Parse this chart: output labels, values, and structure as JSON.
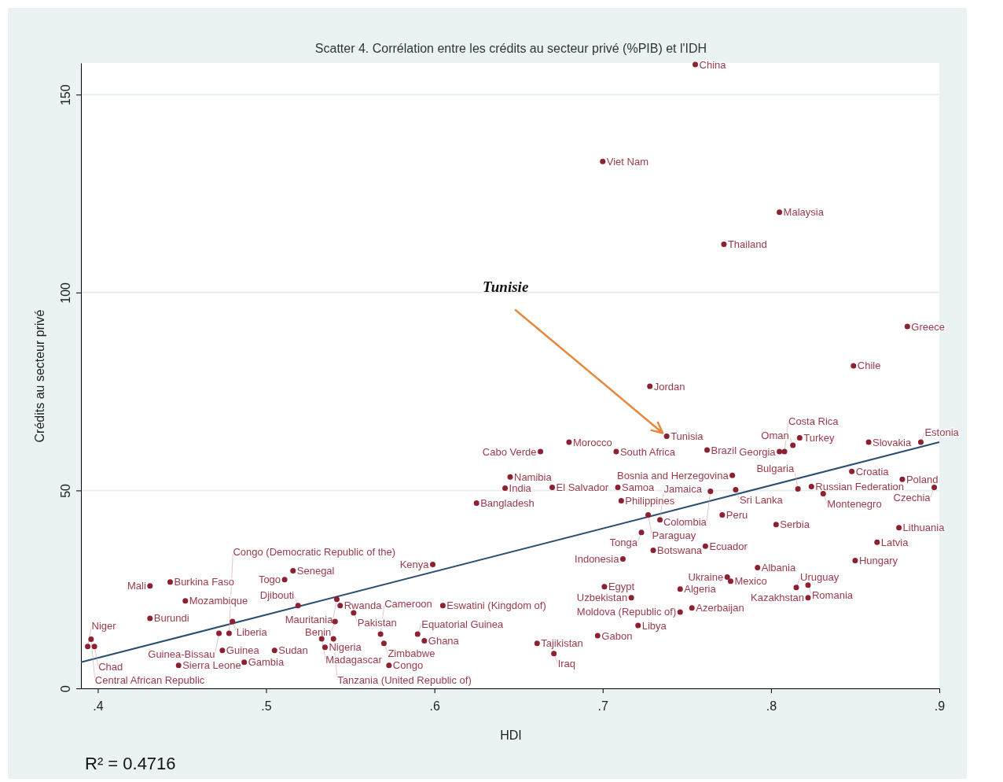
{
  "chart_data": {
    "type": "scatter",
    "title": "Scatter 4. Corrélation entre les crédits au secteur privé (%PIB) et l'IDH",
    "xlabel": "HDI",
    "ylabel": "Crédits au secteur privé",
    "xlim": [
      0.39,
      0.9
    ],
    "xticks": [
      {
        "value": 0.4,
        "label": ".4"
      },
      {
        "value": 0.5,
        "label": ".5"
      },
      {
        "value": 0.6,
        "label": ".6"
      },
      {
        "value": 0.7,
        "label": ".7"
      },
      {
        "value": 0.8,
        "label": ".8"
      },
      {
        "value": 0.9,
        "label": ".9"
      }
    ],
    "ylim": [
      0,
      158
    ],
    "yticks": [
      0,
      50,
      100,
      150
    ],
    "grid": "y",
    "series": [
      {
        "marker": "circle",
        "color": "#8b2131",
        "x": [
          0.755,
          0.7,
          0.805,
          0.772,
          0.881,
          0.849,
          0.728,
          0.738,
          0.68,
          0.663,
          0.708,
          0.762,
          0.817,
          0.813,
          0.805,
          0.808,
          0.858,
          0.889,
          0.645,
          0.642,
          0.67,
          0.709,
          0.711,
          0.625,
          0.777,
          0.764,
          0.779,
          0.816,
          0.824,
          0.831,
          0.848,
          0.878,
          0.897,
          0.727,
          0.771,
          0.734,
          0.803,
          0.723,
          0.73,
          0.761,
          0.712,
          0.876,
          0.863,
          0.85,
          0.792,
          0.774,
          0.776,
          0.701,
          0.746,
          0.717,
          0.815,
          0.822,
          0.822,
          0.753,
          0.746,
          0.721,
          0.697,
          0.661,
          0.671,
          0.605,
          0.599,
          0.573,
          0.516,
          0.511,
          0.443,
          0.431,
          0.452,
          0.431,
          0.519,
          0.542,
          0.544,
          0.552,
          0.541,
          0.48,
          0.472,
          0.478,
          0.396,
          0.394,
          0.398,
          0.474,
          0.505,
          0.487,
          0.448,
          0.535,
          0.57,
          0.594,
          0.59,
          0.568,
          0.54,
          0.533
        ],
        "values": [
          157.6,
          133.1,
          120.3,
          112.2,
          91.4,
          81.5,
          76.3,
          63.7,
          62.2,
          59.8,
          59.8,
          60.2,
          63.3,
          61.4,
          59.8,
          59.8,
          62.2,
          62.2,
          53.4,
          50.6,
          50.8,
          50.8,
          47.4,
          46.8,
          53.8,
          49.8,
          50.2,
          50.4,
          51.0,
          49.2,
          54.8,
          52.8,
          50.8,
          43.8,
          43.8,
          42.6,
          41.4,
          39.4,
          34.9,
          35.9,
          32.7,
          40.6,
          36.9,
          32.3,
          30.5,
          28.1,
          27.1,
          25.7,
          25.1,
          22.9,
          25.5,
          26.1,
          22.9,
          20.3,
          19.3,
          15.9,
          13.3,
          11.4,
          8.8,
          20.9,
          31.3,
          5.8,
          29.7,
          27.5,
          26.9,
          25.9,
          22.1,
          17.7,
          20.9,
          22.5,
          20.9,
          19.1,
          16.9,
          16.9,
          13.9,
          13.9,
          12.4,
          10.6,
          10.6,
          9.6,
          9.6,
          6.6,
          5.8,
          10.4,
          11.4,
          12.0,
          13.7,
          13.7,
          12.5,
          12.5
        ],
        "value_labels": [
          "China",
          "Viet Nam",
          "Malaysia",
          "Thailand",
          "Greece",
          "Chile",
          "Jordan",
          "Tunisia",
          "Morocco",
          "Cabo Verde",
          "South Africa",
          "Brazil",
          "Turkey",
          "Oman",
          "Georgia",
          "Costa Rica",
          "Slovakia",
          "Estonia",
          "Namibia",
          "India",
          "El Salvador",
          "Samoa",
          "Philippines",
          "Bangladesh",
          "Bosnia and Herzegovina",
          "Colombia",
          "Sri Lanka",
          "Bulgaria",
          "Russian Federation",
          "Montenegro",
          "Croatia",
          "Poland",
          "Czechia",
          "Paraguay",
          "Peru",
          "Jamaica",
          "Serbia",
          "Tonga",
          "Botswana",
          "Ecuador",
          "Indonesia",
          "Lithuania",
          "Latvia",
          "Hungary",
          "Albania",
          "Ukraine",
          "Mexico",
          "Egypt",
          "Algeria",
          "Uzbekistan",
          "Uruguay",
          "Romania",
          "Kazakhstan",
          "Azerbaijan",
          "Moldova (Republic of)",
          "Libya",
          "Gabon",
          "Tajikistan",
          "Iraq",
          "Eswatini (Kingdom of)",
          "Kenya",
          "Congo",
          "Senegal",
          "Togo",
          "Burkina Faso",
          "Mali",
          "Mozambique",
          "Burundi",
          "Djibouti",
          "Mauritania",
          "Rwanda",
          "Pakistan",
          "Benin",
          "Liberia",
          "Guinea-Bissau",
          "Congo (Democratic Republic of the)",
          "Central African Republic",
          "Niger",
          "Chad",
          "Guinea",
          "Sudan",
          "Gambia",
          "Sierra Leone",
          "Nigeria",
          "Zimbabwe",
          "Ghana",
          "Equatorial Guinea",
          "Cameroon",
          "Tanzania (United Republic of)",
          "Madagascar"
        ]
      },
      {
        "type": "line",
        "color": "#2b4f72",
        "x": [
          0.39,
          0.9
        ],
        "values": [
          6.6,
          62.2
        ]
      }
    ],
    "annotations": [
      {
        "text": "Tunisie",
        "x": 0.738,
        "y": 63.7
      },
      "R² = 0.4716"
    ]
  }
}
